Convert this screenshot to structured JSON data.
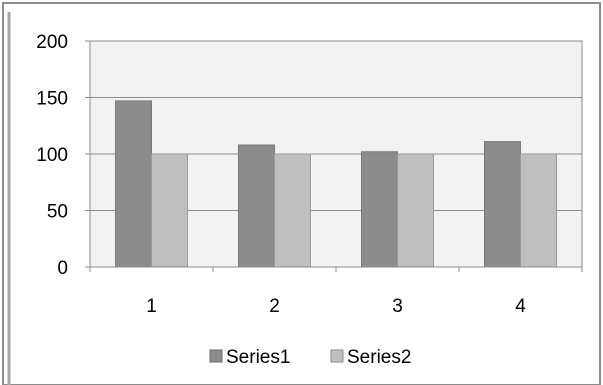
{
  "chart_data": {
    "type": "bar",
    "categories": [
      "1",
      "2",
      "3",
      "4"
    ],
    "series": [
      {
        "name": "Series1",
        "values": [
          147,
          108,
          102,
          111
        ],
        "color": "#8c8c8c"
      },
      {
        "name": "Series2",
        "values": [
          100,
          100,
          100,
          100
        ],
        "color": "#bfbfbf"
      }
    ],
    "ylim": [
      0,
      200
    ],
    "yticks": [
      "0",
      "50",
      "100",
      "150",
      "200"
    ],
    "grid": true,
    "legend": "bottom",
    "plot_background": "#f2f2f2"
  }
}
